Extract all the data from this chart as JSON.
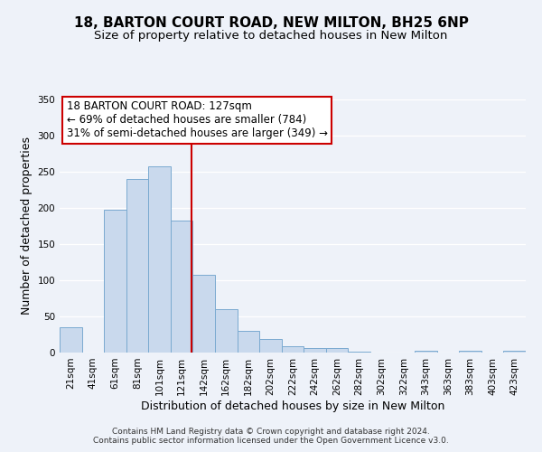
{
  "title": "18, BARTON COURT ROAD, NEW MILTON, BH25 6NP",
  "subtitle": "Size of property relative to detached houses in New Milton",
  "xlabel": "Distribution of detached houses by size in New Milton",
  "ylabel": "Number of detached properties",
  "bar_labels": [
    "21sqm",
    "41sqm",
    "61sqm",
    "81sqm",
    "101sqm",
    "121sqm",
    "142sqm",
    "162sqm",
    "182sqm",
    "202sqm",
    "222sqm",
    "242sqm",
    "262sqm",
    "282sqm",
    "302sqm",
    "322sqm",
    "343sqm",
    "363sqm",
    "383sqm",
    "403sqm",
    "423sqm"
  ],
  "bar_heights": [
    35,
    0,
    198,
    240,
    258,
    183,
    108,
    60,
    30,
    19,
    9,
    6,
    6,
    1,
    0,
    0,
    3,
    0,
    2,
    0,
    2
  ],
  "bar_color": "#c9d9ed",
  "bar_edge_color": "#7aaad0",
  "bar_width": 1.0,
  "vline_x": 5.45,
  "vline_color": "#cc0000",
  "annotation_line1": "18 BARTON COURT ROAD: 127sqm",
  "annotation_line2": "← 69% of detached houses are smaller (784)",
  "annotation_line3": "31% of semi-detached houses are larger (349) →",
  "annotation_box_color": "#ffffff",
  "annotation_box_edge": "#cc0000",
  "ylim": [
    0,
    350
  ],
  "yticks": [
    0,
    50,
    100,
    150,
    200,
    250,
    300,
    350
  ],
  "footer1": "Contains HM Land Registry data © Crown copyright and database right 2024.",
  "footer2": "Contains public sector information licensed under the Open Government Licence v3.0.",
  "title_fontsize": 11,
  "subtitle_fontsize": 9.5,
  "axis_label_fontsize": 9,
  "tick_fontsize": 7.5,
  "annotation_fontsize": 8.5,
  "footer_fontsize": 6.5,
  "background_color": "#eef2f9"
}
